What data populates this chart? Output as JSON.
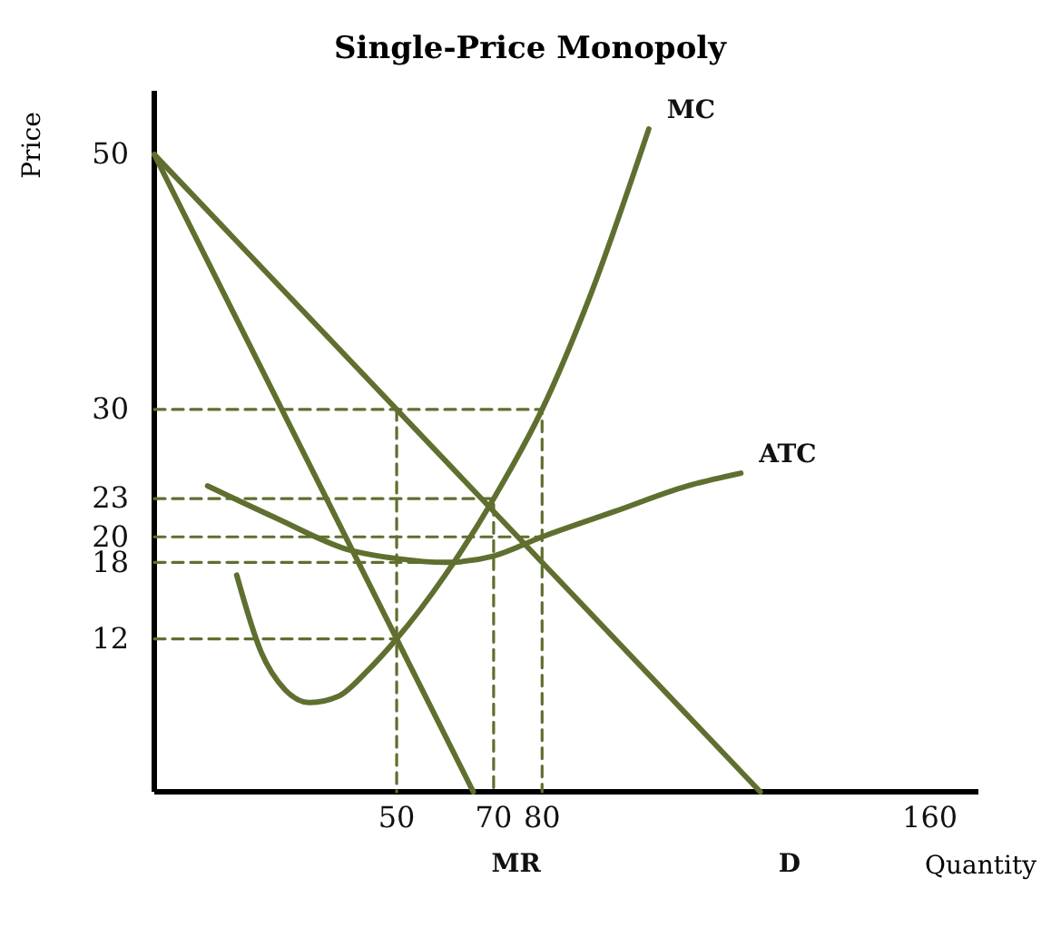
{
  "chart_data": {
    "type": "line",
    "title": "Single-Price Monopoly",
    "xlabel": "Quantity",
    "ylabel": "Price",
    "xlim": [
      0,
      170
    ],
    "ylim": [
      0,
      55
    ],
    "xticks": [
      50,
      70,
      80,
      160
    ],
    "yticks": [
      12,
      18,
      20,
      23,
      30,
      50
    ],
    "legend": false,
    "grid": false,
    "marker": "none",
    "series": [
      {
        "name": "D",
        "color": "#5f6f2f",
        "line_style": "solid",
        "x": [
          0,
          125
        ],
        "values": [
          50,
          0
        ]
      },
      {
        "name": "MR",
        "color": "#5f6f2f",
        "line_style": "solid",
        "x": [
          0,
          50,
          65.8
        ],
        "values": [
          50,
          12,
          0
        ]
      },
      {
        "name": "MC",
        "color": "#5f6f2f",
        "line_style": "solid",
        "x": [
          17,
          22,
          27,
          32,
          38,
          44,
          50,
          60,
          70,
          80,
          90,
          102
        ],
        "values": [
          17,
          11,
          8,
          7,
          7.5,
          9.5,
          12,
          17,
          23,
          30,
          39,
          52
        ]
      },
      {
        "name": "ATC",
        "color": "#5f6f2f",
        "line_style": "solid",
        "x": [
          11,
          25,
          40,
          50,
          60,
          70,
          80,
          95,
          110,
          121
        ],
        "values": [
          24,
          21.5,
          19,
          18.3,
          18,
          18.5,
          20,
          22,
          24,
          25
        ]
      },
      {
        "color": "#5f6f2f",
        "line_style": "dashed",
        "x": [
          0,
          80,
          80
        ],
        "values": [
          30,
          30,
          0
        ]
      },
      {
        "color": "#5f6f2f",
        "line_style": "dashed",
        "x": [
          0,
          70,
          70
        ],
        "values": [
          23,
          23,
          0
        ]
      },
      {
        "color": "#5f6f2f",
        "line_style": "dashed",
        "x": [
          0,
          80
        ],
        "values": [
          20,
          20
        ]
      },
      {
        "color": "#5f6f2f",
        "line_style": "dashed",
        "x": [
          0,
          57
        ],
        "values": [
          18,
          18
        ]
      },
      {
        "color": "#5f6f2f",
        "line_style": "dashed",
        "x": [
          0,
          50
        ],
        "values": [
          12,
          12
        ]
      },
      {
        "color": "#5f6f2f",
        "line_style": "dashed",
        "x": [
          50,
          50
        ],
        "values": [
          30,
          0
        ]
      }
    ]
  }
}
